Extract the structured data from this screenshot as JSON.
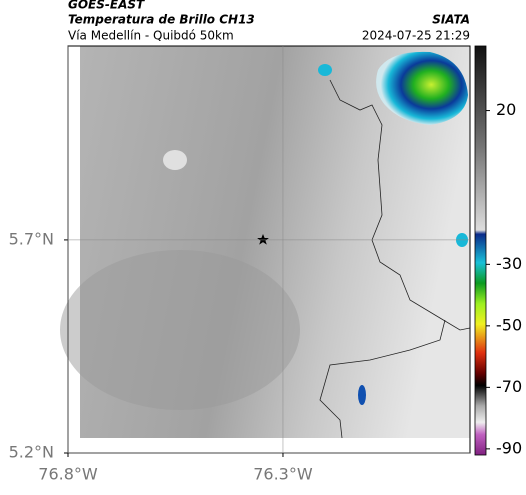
{
  "header": {
    "satellite": "GOES-EAST",
    "title": "Temperatura de Brillo CH13",
    "route": "Vía Medellín - Quibdó 50km",
    "source": "SIATA",
    "datetime": "2024-07-25 21:29"
  },
  "map": {
    "lon_lim": [
      -76.8,
      -75.865
    ],
    "lat_lim": [
      5.2,
      6.155
    ],
    "lat_ticks": [
      {
        "value": 5.7,
        "label": "5.7°N"
      },
      {
        "value": 5.2,
        "label": "5.2°N"
      }
    ],
    "lon_ticks": [
      {
        "value": -76.8,
        "label": "76.8°W"
      },
      {
        "value": -76.3,
        "label": "76.3°W"
      }
    ],
    "grid": true
  },
  "colorbar": {
    "lim": [
      -92,
      41
    ],
    "ticks": [
      20,
      -30,
      -50,
      -70,
      -90
    ]
  }
}
